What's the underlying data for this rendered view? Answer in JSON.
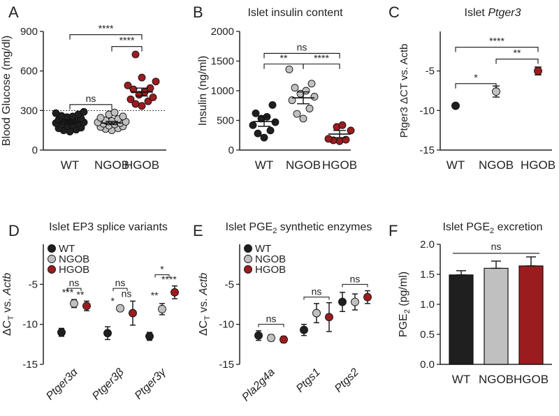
{
  "colors": {
    "wt": "#1f1f1f",
    "ngob": "#c0c0c0",
    "hgob": "#9b1c1f",
    "axis": "#222222"
  },
  "chart_data": [
    {
      "id": "A",
      "panel_letter": "A",
      "type": "scatter",
      "title": "",
      "categories": [
        "WT",
        "NGOB",
        "HGOB"
      ],
      "ylabel": "Blood Glucose (mg/dl)",
      "ylim": [
        0,
        900
      ],
      "yticks": [
        "0",
        "300",
        "600",
        "900"
      ],
      "reference_line": 300,
      "series": [
        {
          "category": "WT",
          "color_key": "wt",
          "mean": 215,
          "sem": 14,
          "points": [
            140,
            150,
            155,
            165,
            170,
            180,
            190,
            195,
            200,
            205,
            210,
            215,
            220,
            225,
            230,
            240,
            250,
            255,
            260,
            270,
            280,
            290
          ]
        },
        {
          "category": "NGOB",
          "color_key": "ngob",
          "mean": 205,
          "sem": 12,
          "points": [
            150,
            160,
            165,
            175,
            180,
            185,
            195,
            200,
            205,
            210,
            215,
            220,
            225,
            235,
            245,
            255,
            270,
            285
          ]
        },
        {
          "category": "HGOB",
          "color_key": "hgob",
          "mean": 440,
          "sem": 30,
          "points": [
            335,
            350,
            370,
            385,
            400,
            420,
            440,
            460,
            470,
            490,
            520,
            550,
            725
          ]
        }
      ],
      "sig": [
        {
          "from": 0,
          "to": 1,
          "y": 345,
          "label": "ns"
        },
        {
          "from": 1,
          "to": 2,
          "y": 785,
          "label": "****"
        },
        {
          "from": 0,
          "to": 2,
          "y": 875,
          "label": "****"
        }
      ]
    },
    {
      "id": "B",
      "panel_letter": "B",
      "type": "scatter",
      "title": "Islet insulin content",
      "categories": [
        "WT",
        "NGOB",
        "HGOB"
      ],
      "ylabel": "Insulin (ng/ml)",
      "ylim": [
        0,
        2000
      ],
      "yticks": [
        "0",
        "500",
        "1000",
        "1500",
        "2000"
      ],
      "series": [
        {
          "category": "WT",
          "color_key": "wt",
          "mean": 480,
          "sem": 80,
          "points": [
            210,
            280,
            330,
            420,
            470,
            530,
            560,
            620,
            760
          ]
        },
        {
          "category": "NGOB",
          "color_key": "ngob",
          "mean": 880,
          "sem": 100,
          "points": [
            530,
            610,
            700,
            840,
            900,
            950,
            1000,
            1050,
            1120,
            1360
          ]
        },
        {
          "category": "HGOB",
          "color_key": "hgob",
          "mean": 270,
          "sem": 60,
          "points": [
            150,
            165,
            175,
            190,
            330,
            390,
            420
          ]
        }
      ],
      "sig": [
        {
          "from": 0,
          "to": 1,
          "y": 1450,
          "label": "**"
        },
        {
          "from": 1,
          "to": 2,
          "y": 1450,
          "label": "****"
        },
        {
          "from": 0,
          "to": 2,
          "y": 1630,
          "label": "ns"
        }
      ]
    },
    {
      "id": "C",
      "panel_letter": "C",
      "type": "scatter",
      "title": "Islet Ptger3",
      "title_plain": "Islet ",
      "title_italic": "Ptger3",
      "categories": [
        "WT",
        "NGOB",
        "HGOB"
      ],
      "ylabel": "Ptger3 ΔCT vs. Actb",
      "ylim": [
        -15,
        0
      ],
      "yticks": [
        "-15",
        "-10",
        "-5"
      ],
      "ytick_values": [
        -15,
        -10,
        -5
      ],
      "series": [
        {
          "category": "WT",
          "color_key": "wt",
          "mean": -9.4,
          "sem": 0.15
        },
        {
          "category": "NGOB",
          "color_key": "ngob",
          "mean": -7.6,
          "sem": 0.7
        },
        {
          "category": "HGOB",
          "color_key": "hgob",
          "mean": -5.0,
          "sem": 0.5
        }
      ],
      "sig": [
        {
          "from": 0,
          "to": 1,
          "y": -6.6,
          "label": "*"
        },
        {
          "from": 1,
          "to": 2,
          "y": -3.5,
          "label": "**"
        },
        {
          "from": 0,
          "to": 2,
          "y": -2.0,
          "label": "****"
        }
      ]
    },
    {
      "id": "D",
      "panel_letter": "D",
      "type": "scatter",
      "title": "Islet EP3 splice variants",
      "categories": [
        "Ptger3α",
        "Ptger3β",
        "Ptger3γ"
      ],
      "ylabel_main": "ΔC",
      "ylabel_sub": "T",
      "ylabel_rest": " vs. ",
      "ylabel_italic": "Actb",
      "ylim": [
        -15,
        0
      ],
      "yticks": [
        "-15",
        "-10",
        "-5"
      ],
      "ytick_values": [
        -15,
        -10,
        -5
      ],
      "legend": [
        "WT",
        "NGOB",
        "HGOB"
      ],
      "legend_position": "top-left",
      "groups": [
        {
          "category": "Ptger3α",
          "series": [
            {
              "color_key": "wt",
              "mean": -11.0,
              "sem": 0.5
            },
            {
              "color_key": "ngob",
              "mean": -7.4,
              "sem": 0.5
            },
            {
              "color_key": "hgob",
              "mean": -7.7,
              "sem": 0.6
            }
          ],
          "labels": [
            {
              "text": "ns",
              "y": -5.5
            },
            {
              "text": "***",
              "y": -6.4,
              "dx": -0.5
            },
            {
              "text": "**",
              "y": -6.7,
              "dx": 0.5
            }
          ]
        },
        {
          "category": "Ptger3β",
          "series": [
            {
              "color_key": "wt",
              "mean": -11.1,
              "sem": 0.8
            },
            {
              "color_key": "ngob",
              "mean": -8.0,
              "sem": 0.3
            },
            {
              "color_key": "hgob",
              "mean": -8.6,
              "sem": 1.5
            }
          ],
          "labels": [
            {
              "text": "ns",
              "y": -5.5
            },
            {
              "text": "*",
              "y": -7.5,
              "dx": -0.6
            },
            {
              "text": "ns",
              "y": -6.6,
              "dx": 0.5
            }
          ]
        },
        {
          "category": "Ptger3γ",
          "series": [
            {
              "color_key": "wt",
              "mean": -11.5,
              "sem": 0.5
            },
            {
              "color_key": "ngob",
              "mean": -8.1,
              "sem": 0.7
            },
            {
              "color_key": "hgob",
              "mean": -6.0,
              "sem": 0.8
            }
          ],
          "labels": [
            {
              "text": "*",
              "y": -3.8
            },
            {
              "text": "****",
              "y": -4.8,
              "dx": 0.55
            },
            {
              "text": "**",
              "y": -6.8,
              "dx": -0.6
            }
          ]
        }
      ]
    },
    {
      "id": "E",
      "panel_letter": "E",
      "type": "scatter",
      "title": "Islet PGE2 synthetic enzymes",
      "title_plain": "Islet PGE",
      "title_sub": "2",
      "title_rest": " synthetic enzymes",
      "categories": [
        "Pla2g4a",
        "Ptgs1",
        "Ptgs2"
      ],
      "ylabel_main": "ΔC",
      "ylabel_sub": "T",
      "ylabel_rest": " vs. ",
      "ylabel_italic": "Actb",
      "ylim": [
        -15,
        0
      ],
      "yticks": [
        "-15",
        "-10",
        "-5"
      ],
      "ytick_values": [
        -15,
        -10,
        -5
      ],
      "legend": [
        "WT",
        "NGOB",
        "HGOB"
      ],
      "legend_position": "top-left",
      "groups": [
        {
          "category": "Pla2g4a",
          "series": [
            {
              "color_key": "wt",
              "mean": -11.4,
              "sem": 0.6
            },
            {
              "color_key": "ngob",
              "mean": -11.7,
              "sem": 0.4
            },
            {
              "color_key": "hgob",
              "mean": -11.9,
              "sem": 0.4
            }
          ],
          "labels": [
            {
              "text": "ns",
              "y": -10.0
            }
          ]
        },
        {
          "category": "Ptgs1",
          "series": [
            {
              "color_key": "wt",
              "mean": -10.7,
              "sem": 0.7
            },
            {
              "color_key": "ngob",
              "mean": -8.6,
              "sem": 1.2
            },
            {
              "color_key": "hgob",
              "mean": -9.1,
              "sem": 1.8
            }
          ],
          "labels": [
            {
              "text": "ns",
              "y": -6.6
            }
          ]
        },
        {
          "category": "Ptgs2",
          "series": [
            {
              "color_key": "wt",
              "mean": -7.2,
              "sem": 1.2
            },
            {
              "color_key": "ngob",
              "mean": -7.2,
              "sem": 1.0
            },
            {
              "color_key": "hgob",
              "mean": -6.6,
              "sem": 0.8
            }
          ],
          "labels": [
            {
              "text": "ns",
              "y": -5.0
            }
          ]
        }
      ]
    },
    {
      "id": "F",
      "panel_letter": "F",
      "type": "bar",
      "title": "Islet PGE2 excretion",
      "title_plain": "Islet PGE",
      "title_sub": "2",
      "title_rest": " excretion",
      "categories": [
        "WT",
        "NGOB",
        "HGOB"
      ],
      "ylabel_main": "PGE",
      "ylabel_sub": "2",
      "ylabel_rest": " (pg/ml)",
      "ylim": [
        0,
        2.0
      ],
      "yticks": [
        "0.0",
        "0.5",
        "1.0",
        "1.5",
        "2.0"
      ],
      "ytick_values": [
        0,
        0.5,
        1.0,
        1.5,
        2.0
      ],
      "values": [
        1.49,
        1.6,
        1.64
      ],
      "errors": [
        0.07,
        0.12,
        0.15
      ],
      "color_keys": [
        "wt",
        "ngob",
        "hgob"
      ],
      "sig": [
        {
          "from": 0,
          "to": 2,
          "y": 1.85,
          "label": "ns"
        }
      ]
    }
  ]
}
